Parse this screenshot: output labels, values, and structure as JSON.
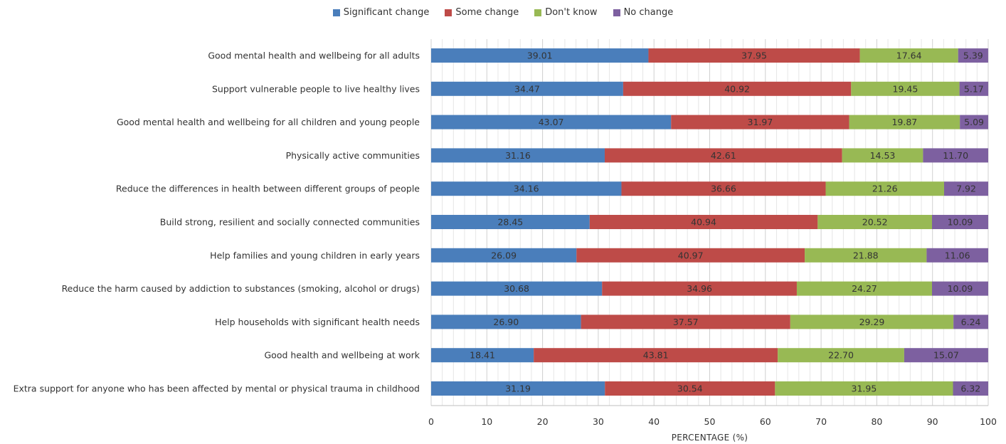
{
  "chart_data": {
    "type": "bar",
    "orientation": "horizontal",
    "stacked": true,
    "title": "",
    "xlabel": "PERCENTAGE (%)",
    "ylabel": "",
    "xlim": [
      0,
      100
    ],
    "xticks": [
      0,
      10,
      20,
      30,
      40,
      50,
      60,
      70,
      80,
      90,
      100
    ],
    "grid": true,
    "legend_position": "top",
    "categories": [
      "Good mental health and wellbeing for all adults",
      "Support vulnerable people to live healthy lives",
      "Good mental health and wellbeing for all children and young people",
      "Physically active communities",
      "Reduce the differences in health between different groups of people",
      "Build strong, resilient and socially connected communities",
      "Help families and young children in early years",
      "Reduce the harm caused by addiction to substances (smoking, alcohol or drugs)",
      "Help households with significant health needs",
      "Good health and wellbeing at work",
      "Extra support for anyone who has been affected by mental or physical trauma in childhood"
    ],
    "series": [
      {
        "name": "Significant change",
        "color": "#4a7ebb",
        "values": [
          "39.01",
          "34.47",
          "43.07",
          "31.16",
          "34.16",
          "28.45",
          "26.09",
          "30.68",
          "26.90",
          "18.41",
          "31.19"
        ]
      },
      {
        "name": "Some change",
        "color": "#be4b48",
        "values": [
          "37.95",
          "40.92",
          "31.97",
          "42.61",
          "36.66",
          "40.94",
          "40.97",
          "34.96",
          "37.57",
          "43.81",
          "30.54"
        ]
      },
      {
        "name": "Don't know",
        "color": "#98b954",
        "values": [
          "17.64",
          "19.45",
          "19.87",
          "14.53",
          "21.26",
          "20.52",
          "21.88",
          "24.27",
          "29.29",
          "22.70",
          "31.95"
        ]
      },
      {
        "name": "No change",
        "color": "#7d60a0",
        "values": [
          "5.39",
          "5.17",
          "5.09",
          "11.70",
          "7.92",
          "10.09",
          "11.06",
          "10.09",
          "6.24",
          "15.07",
          "6.32"
        ]
      }
    ]
  }
}
